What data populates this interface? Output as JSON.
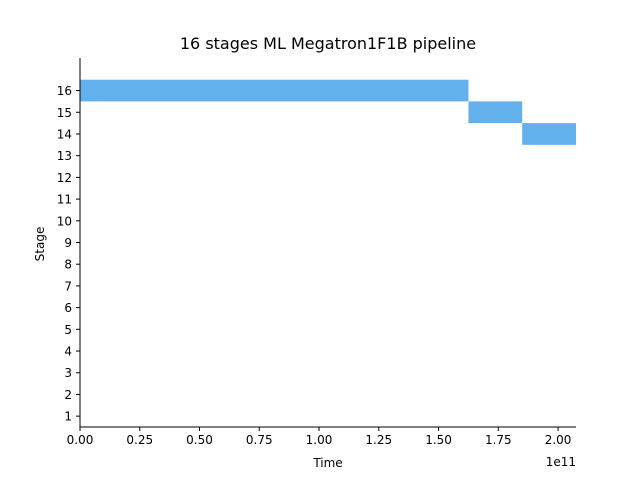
{
  "chart_data": {
    "type": "bar",
    "orientation": "horizontal",
    "title": "16 stages ML Megatron1F1B pipeline",
    "xlabel": "Time",
    "ylabel": "Stage",
    "x_offset_label": "1e11",
    "xlim": [
      0,
      2.075
    ],
    "ylim": [
      0.5,
      17.5
    ],
    "x_ticks": [
      "0.00",
      "0.25",
      "0.50",
      "0.75",
      "1.00",
      "1.25",
      "1.50",
      "1.75",
      "2.00"
    ],
    "y_ticks": [
      "1",
      "2",
      "3",
      "4",
      "5",
      "6",
      "7",
      "8",
      "9",
      "10",
      "11",
      "12",
      "13",
      "14",
      "15",
      "16"
    ],
    "bar_color": "#62b0ec",
    "grid": false,
    "bars": [
      {
        "stage": 16,
        "start": 0.0,
        "end": 1.625
      },
      {
        "stage": 15,
        "start": 1.625,
        "end": 1.85
      },
      {
        "stage": 14,
        "start": 1.85,
        "end": 2.075
      }
    ]
  }
}
